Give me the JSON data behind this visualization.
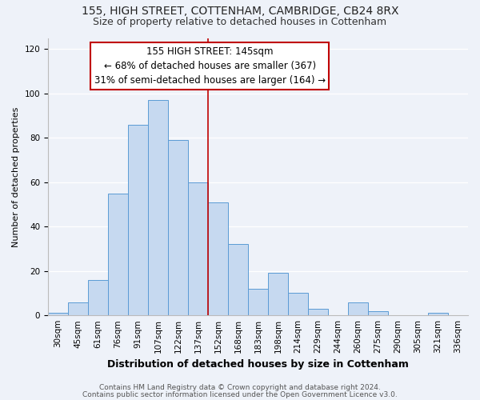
{
  "title1": "155, HIGH STREET, COTTENHAM, CAMBRIDGE, CB24 8RX",
  "title2": "Size of property relative to detached houses in Cottenham",
  "xlabel": "Distribution of detached houses by size in Cottenham",
  "ylabel": "Number of detached properties",
  "bar_labels": [
    "30sqm",
    "45sqm",
    "61sqm",
    "76sqm",
    "91sqm",
    "107sqm",
    "122sqm",
    "137sqm",
    "152sqm",
    "168sqm",
    "183sqm",
    "198sqm",
    "214sqm",
    "229sqm",
    "244sqm",
    "260sqm",
    "275sqm",
    "290sqm",
    "305sqm",
    "321sqm",
    "336sqm"
  ],
  "bar_heights": [
    1,
    6,
    16,
    55,
    86,
    97,
    79,
    60,
    51,
    32,
    12,
    19,
    10,
    3,
    0,
    6,
    2,
    0,
    0,
    1,
    0
  ],
  "bar_color": "#c6d9f0",
  "bar_edge_color": "#5b9bd5",
  "vline_x_index": 7.5,
  "vline_color": "#c00000",
  "annotation_title": "155 HIGH STREET: 145sqm",
  "annotation_line1": "← 68% of detached houses are smaller (367)",
  "annotation_line2": "31% of semi-detached houses are larger (164) →",
  "annotation_box_color": "#c00000",
  "ylim": [
    0,
    125
  ],
  "footer1": "Contains HM Land Registry data © Crown copyright and database right 2024.",
  "footer2": "Contains public sector information licensed under the Open Government Licence v3.0.",
  "background_color": "#eef2f9",
  "title1_fontsize": 10,
  "title2_fontsize": 9,
  "xlabel_fontsize": 9,
  "ylabel_fontsize": 8,
  "tick_fontsize": 7.5,
  "annotation_fontsize": 8.5,
  "footer_fontsize": 6.5
}
